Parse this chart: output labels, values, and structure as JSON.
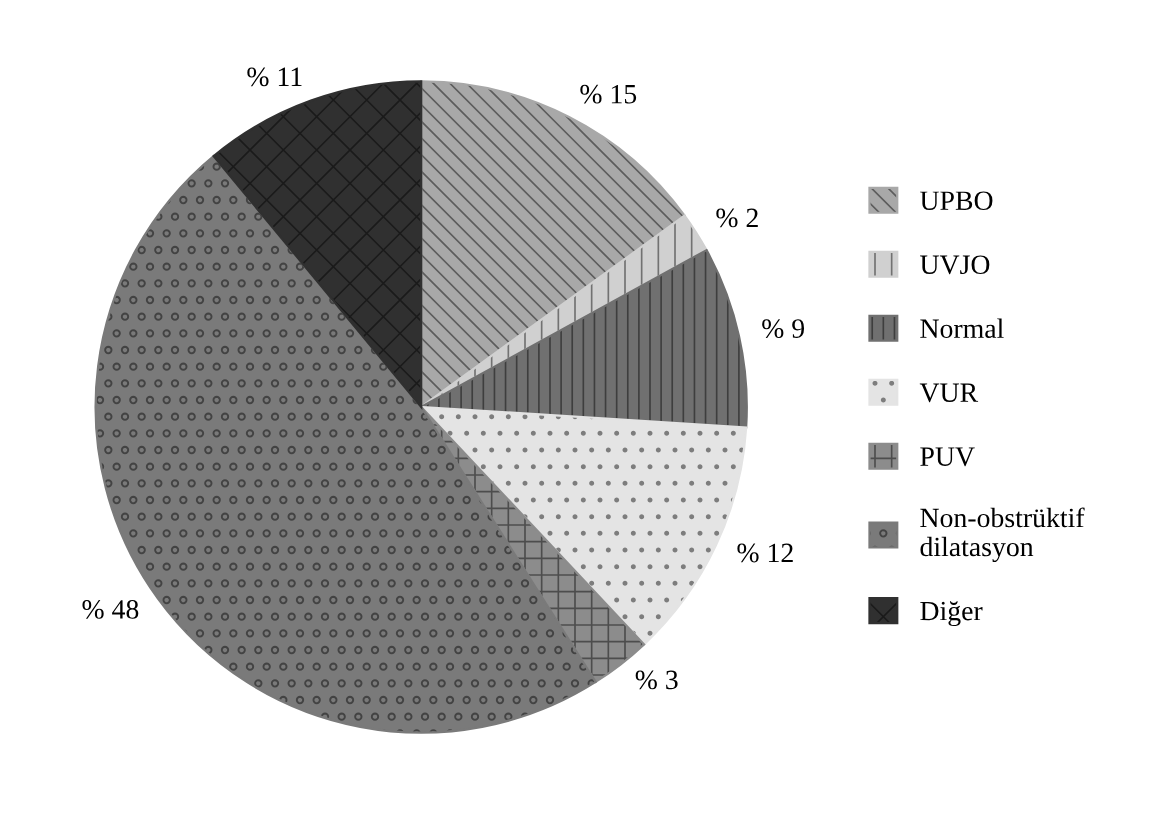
{
  "chart_data": {
    "type": "pie",
    "categories": [
      "UPBO",
      "UVJO",
      "Normal",
      "VUR",
      "PUV",
      "Non-obstrüktif\ndilatasyon",
      "Diğer"
    ],
    "values": [
      15,
      2,
      9,
      12,
      3,
      48,
      11
    ],
    "value_labels": [
      "% 15",
      "% 2",
      "% 9",
      "% 12",
      "% 3",
      "% 48",
      "% 11"
    ],
    "colors": [
      "#a8a8a8",
      "#d0d0d0",
      "#707070",
      "#e4e4e4",
      "#8c8c8c",
      "#7a7a7a",
      "#303030"
    ],
    "legend": "right"
  }
}
